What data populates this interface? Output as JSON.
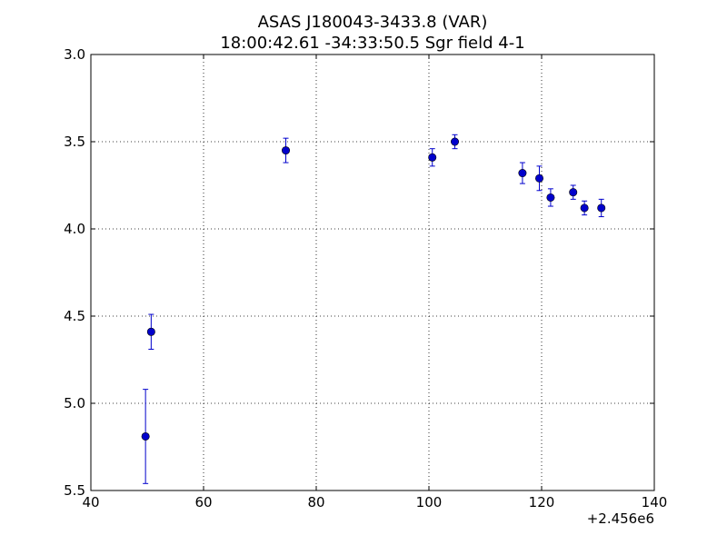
{
  "chart_data": {
    "type": "scatter",
    "title": "ASAS J180043-3433.8 (VAR)",
    "subtitle": "18:00:42.61 -34:33:50.5 Sgr field 4-1",
    "xlabel": "",
    "ylabel": "",
    "x_offset_label": "+2.456e6",
    "xlim": [
      40,
      140
    ],
    "ylim": [
      3.0,
      5.5
    ],
    "y_inverted": true,
    "x_ticks": [
      40,
      60,
      80,
      100,
      120,
      140
    ],
    "x_tick_labels": [
      "40",
      "60",
      "80",
      "100",
      "120",
      "140"
    ],
    "y_ticks": [
      3.0,
      3.5,
      4.0,
      4.5,
      5.0,
      5.5
    ],
    "y_tick_labels": [
      "3.0",
      "3.5",
      "4.0",
      "4.5",
      "5.0",
      "5.5"
    ],
    "grid": true,
    "color": "#0000cc",
    "series": [
      {
        "name": "",
        "points": [
          {
            "x": 49.7,
            "y": 5.19,
            "err": 0.27
          },
          {
            "x": 50.7,
            "y": 4.59,
            "err": 0.1
          },
          {
            "x": 74.6,
            "y": 3.55,
            "err": 0.07
          },
          {
            "x": 100.6,
            "y": 3.59,
            "err": 0.05
          },
          {
            "x": 104.6,
            "y": 3.5,
            "err": 0.04
          },
          {
            "x": 116.6,
            "y": 3.68,
            "err": 0.06
          },
          {
            "x": 119.6,
            "y": 3.71,
            "err": 0.07
          },
          {
            "x": 121.6,
            "y": 3.82,
            "err": 0.05
          },
          {
            "x": 125.6,
            "y": 3.79,
            "err": 0.04
          },
          {
            "x": 127.6,
            "y": 3.88,
            "err": 0.04
          },
          {
            "x": 130.6,
            "y": 3.88,
            "err": 0.05
          }
        ]
      }
    ]
  }
}
